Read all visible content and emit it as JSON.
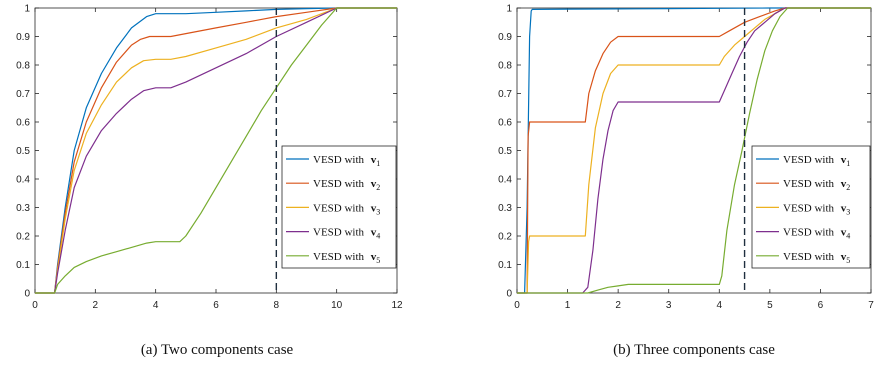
{
  "colors": {
    "s1": "#0072BD",
    "s2": "#D95319",
    "s3": "#EDB120",
    "s4": "#7E2F8E",
    "s5": "#77AC30",
    "axis": "#262626",
    "vline": "#1f2f3f"
  },
  "chart_data": [
    {
      "type": "line",
      "caption": "(a)  Two components case",
      "xlim": [
        0,
        12
      ],
      "ylim": [
        0,
        1
      ],
      "xticks": [
        0,
        2,
        4,
        6,
        8,
        10,
        12
      ],
      "yticks": [
        0,
        0.1,
        0.2,
        0.3,
        0.4,
        0.5,
        0.6,
        0.7,
        0.8,
        0.9,
        1
      ],
      "vline_x": 8,
      "legend_position": "right",
      "series": [
        {
          "name": "VESD with",
          "sub": "1",
          "x": [
            0,
            0.65,
            0.75,
            1.0,
            1.3,
            1.7,
            2.2,
            2.7,
            3.2,
            3.7,
            4.0,
            5.0,
            6.0,
            7.0,
            8.0,
            9.0,
            10.0,
            12.0
          ],
          "y": [
            0,
            0,
            0.1,
            0.3,
            0.5,
            0.65,
            0.77,
            0.86,
            0.93,
            0.97,
            0.98,
            0.98,
            0.985,
            0.99,
            0.995,
            0.998,
            1,
            1
          ]
        },
        {
          "name": "VESD with",
          "sub": "2",
          "x": [
            0,
            0.65,
            0.75,
            1.0,
            1.3,
            1.7,
            2.2,
            2.7,
            3.2,
            3.5,
            3.8,
            4.5,
            5.0,
            6.0,
            7.0,
            8.0,
            9.0,
            10.0,
            12.0
          ],
          "y": [
            0,
            0,
            0.09,
            0.28,
            0.46,
            0.6,
            0.72,
            0.81,
            0.87,
            0.89,
            0.9,
            0.9,
            0.91,
            0.93,
            0.95,
            0.97,
            0.985,
            1,
            1
          ]
        },
        {
          "name": "VESD with",
          "sub": "3",
          "x": [
            0,
            0.65,
            0.75,
            1.0,
            1.3,
            1.7,
            2.2,
            2.7,
            3.2,
            3.6,
            4.0,
            4.5,
            5.0,
            6.0,
            7.0,
            8.0,
            9.0,
            10.0,
            12.0
          ],
          "y": [
            0,
            0,
            0.08,
            0.26,
            0.43,
            0.56,
            0.66,
            0.74,
            0.79,
            0.815,
            0.82,
            0.82,
            0.83,
            0.86,
            0.89,
            0.93,
            0.96,
            1,
            1
          ]
        },
        {
          "name": "VESD with",
          "sub": "4",
          "x": [
            0,
            0.65,
            0.75,
            1.0,
            1.3,
            1.7,
            2.2,
            2.7,
            3.2,
            3.6,
            4.0,
            4.5,
            5.0,
            6.0,
            7.0,
            8.0,
            9.0,
            10.0,
            12.0
          ],
          "y": [
            0,
            0,
            0.07,
            0.22,
            0.37,
            0.48,
            0.57,
            0.63,
            0.68,
            0.71,
            0.72,
            0.72,
            0.74,
            0.79,
            0.84,
            0.9,
            0.95,
            1,
            1
          ]
        },
        {
          "name": "VESD with",
          "sub": "5",
          "x": [
            0,
            0.65,
            0.75,
            1.0,
            1.3,
            1.7,
            2.2,
            2.7,
            3.2,
            3.7,
            4.0,
            4.8,
            5.0,
            5.5,
            6.0,
            6.5,
            7.0,
            7.5,
            8.0,
            8.5,
            9.0,
            9.5,
            10.0,
            12.0
          ],
          "y": [
            0,
            0,
            0.03,
            0.06,
            0.09,
            0.11,
            0.13,
            0.145,
            0.16,
            0.175,
            0.18,
            0.18,
            0.2,
            0.28,
            0.37,
            0.46,
            0.55,
            0.64,
            0.72,
            0.8,
            0.87,
            0.94,
            1,
            1
          ]
        }
      ]
    },
    {
      "type": "line",
      "caption": "(b)  Three components case",
      "xlim": [
        0,
        7
      ],
      "ylim": [
        0,
        1
      ],
      "xticks": [
        0,
        1,
        2,
        3,
        4,
        5,
        6,
        7
      ],
      "yticks": [
        0,
        0.1,
        0.2,
        0.3,
        0.4,
        0.5,
        0.6,
        0.7,
        0.8,
        0.9,
        1
      ],
      "vline_x": 4.5,
      "legend_position": "right",
      "series": [
        {
          "name": "VESD with",
          "sub": "1",
          "x": [
            0,
            0.15,
            0.2,
            0.25,
            0.28,
            0.3,
            1.0,
            2.0,
            3.0,
            4.0,
            5.0,
            7.0
          ],
          "y": [
            0,
            0,
            0.3,
            0.9,
            0.99,
            0.995,
            0.996,
            0.997,
            0.998,
            0.999,
            1,
            1
          ]
        },
        {
          "name": "VESD with",
          "sub": "2",
          "x": [
            0,
            0.2,
            0.22,
            0.25,
            1.35,
            1.42,
            1.55,
            1.7,
            1.85,
            2.0,
            2.1,
            4.0,
            4.2,
            4.5,
            4.8,
            5.1,
            5.3,
            7.0
          ],
          "y": [
            0,
            0,
            0.55,
            0.6,
            0.6,
            0.7,
            0.78,
            0.84,
            0.88,
            0.9,
            0.9,
            0.9,
            0.92,
            0.95,
            0.97,
            0.99,
            1,
            1
          ]
        },
        {
          "name": "VESD with",
          "sub": "3",
          "x": [
            0,
            0.2,
            0.23,
            0.25,
            1.35,
            1.42,
            1.55,
            1.7,
            1.85,
            2.0,
            2.1,
            4.0,
            4.1,
            4.3,
            4.5,
            4.7,
            4.9,
            5.1,
            5.3,
            7.0
          ],
          "y": [
            0,
            0,
            0.18,
            0.2,
            0.2,
            0.38,
            0.58,
            0.7,
            0.77,
            0.8,
            0.8,
            0.8,
            0.83,
            0.87,
            0.9,
            0.93,
            0.96,
            0.98,
            1,
            1
          ]
        },
        {
          "name": "VESD with",
          "sub": "4",
          "x": [
            0,
            1.3,
            1.4,
            1.5,
            1.6,
            1.7,
            1.8,
            1.9,
            2.0,
            2.1,
            4.0,
            4.1,
            4.25,
            4.4,
            4.55,
            4.7,
            4.9,
            5.1,
            5.3,
            7.0
          ],
          "y": [
            0,
            0,
            0.02,
            0.15,
            0.33,
            0.47,
            0.57,
            0.64,
            0.67,
            0.67,
            0.67,
            0.71,
            0.77,
            0.83,
            0.88,
            0.92,
            0.95,
            0.98,
            1,
            1
          ]
        },
        {
          "name": "VESD with",
          "sub": "5",
          "x": [
            0,
            1.4,
            1.6,
            1.8,
            2.0,
            2.2,
            3.0,
            4.0,
            4.05,
            4.15,
            4.3,
            4.45,
            4.6,
            4.75,
            4.9,
            5.05,
            5.2,
            5.35,
            7.0
          ],
          "y": [
            0,
            0,
            0.01,
            0.02,
            0.025,
            0.03,
            0.03,
            0.03,
            0.06,
            0.22,
            0.38,
            0.5,
            0.63,
            0.75,
            0.85,
            0.92,
            0.97,
            1,
            1
          ]
        }
      ]
    }
  ]
}
